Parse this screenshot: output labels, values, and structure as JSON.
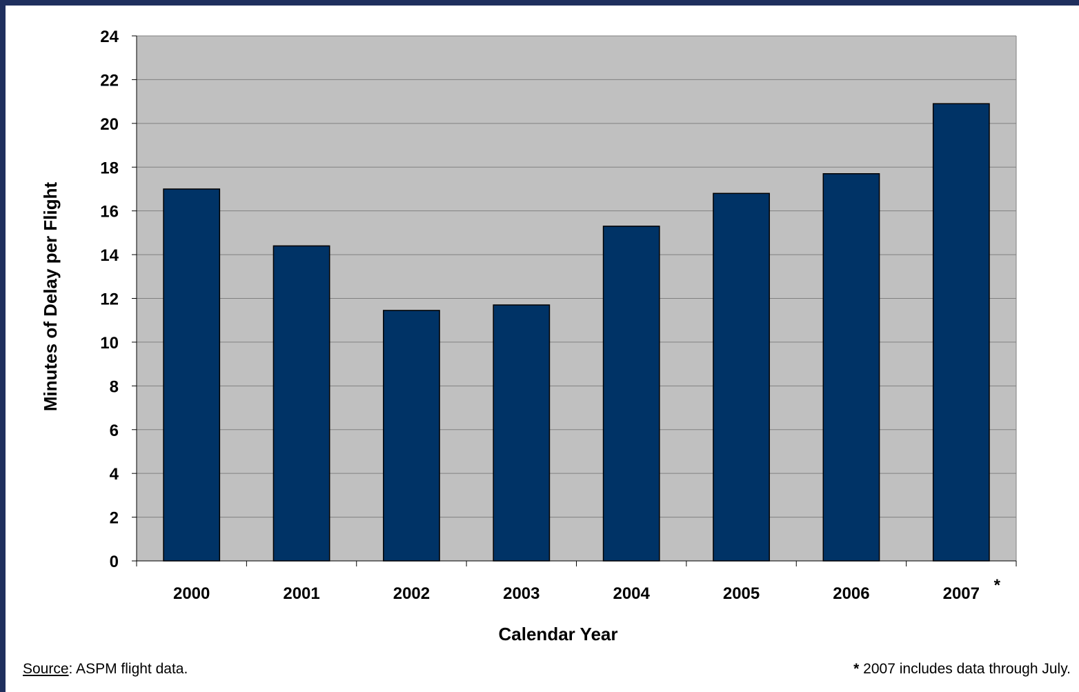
{
  "colors": {
    "frame": "#1f2f5e",
    "plot_background": "#c0c0c0",
    "bar_fill": "#003366",
    "gridline": "#808080"
  },
  "chart_data": {
    "type": "bar",
    "categories": [
      "2000",
      "2001",
      "2002",
      "2003",
      "2004",
      "2005",
      "2006",
      "2007"
    ],
    "values": [
      17.0,
      14.4,
      11.45,
      11.7,
      15.3,
      16.8,
      17.7,
      20.9
    ],
    "title": "",
    "xlabel": "Calendar Year",
    "ylabel": "Minutes of Delay per Flight",
    "ylim": [
      0,
      24
    ],
    "yticks": [
      0,
      2,
      4,
      6,
      8,
      10,
      12,
      14,
      16,
      18,
      20,
      22,
      24
    ],
    "grid": true,
    "legend": "none",
    "annotations": [
      {
        "category": "2007",
        "text": "*"
      }
    ]
  },
  "footer": {
    "source_label": "Source",
    "source_text": ": ASPM flight data.",
    "note_star": "*",
    "note_text": " 2007 includes data through July."
  }
}
